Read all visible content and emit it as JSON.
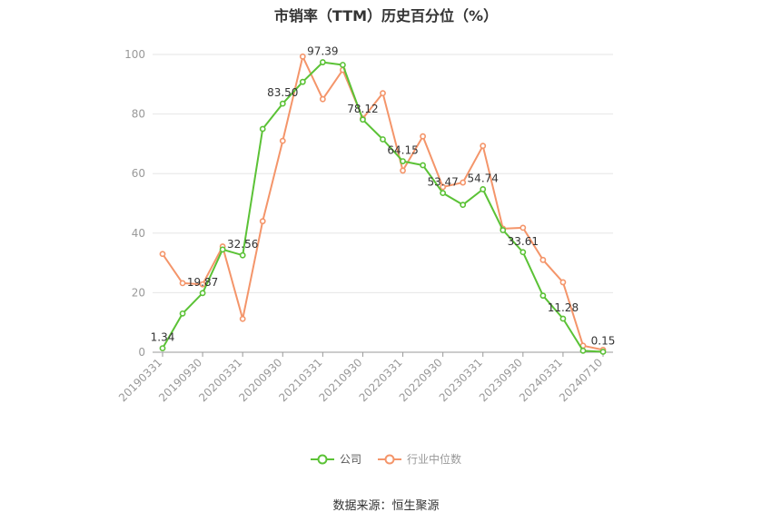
{
  "chart_data": {
    "type": "line",
    "title": "市销率（TTM）历史百分位（%）",
    "xlabel": "",
    "ylabel": "",
    "ylim": [
      0,
      100
    ],
    "yticks": [
      0,
      20,
      40,
      60,
      80,
      100
    ],
    "x": [
      "20190331",
      "20190630",
      "20190930",
      "20191231",
      "20200331",
      "20200630",
      "20200930",
      "20201231",
      "20210331",
      "20210630",
      "20210930",
      "20211231",
      "20220331",
      "20220630",
      "20220930",
      "20221231",
      "20230331",
      "20230630",
      "20230930",
      "20231231",
      "20240331",
      "20240630",
      "20240710"
    ],
    "xtick_labels": [
      "20190331",
      "20190930",
      "20200331",
      "20200930",
      "20210331",
      "20210930",
      "20220331",
      "20220930",
      "20230331",
      "20230930",
      "20240331",
      "20240710"
    ],
    "grid": true,
    "legend_position": "bottom",
    "series": [
      {
        "name": "公司",
        "color": "#5bc236",
        "values": [
          1.34,
          13.0,
          19.87,
          34.5,
          32.56,
          75.0,
          83.5,
          90.8,
          97.39,
          96.5,
          78.12,
          71.5,
          64.15,
          62.8,
          53.47,
          49.5,
          54.74,
          41.0,
          33.61,
          19.0,
          11.28,
          0.5,
          0.15
        ],
        "labels": {
          "0": "1.34",
          "2": "19.87",
          "4": "32.56",
          "6": "83.50",
          "8": "97.39",
          "10": "78.12",
          "12": "64.15",
          "14": "53.47",
          "16": "54.74",
          "18": "33.61",
          "20": "11.28",
          "22": "0.15"
        }
      },
      {
        "name": "行业中位数",
        "color": "#f4956a",
        "values": [
          33.0,
          23.2,
          22.8,
          35.5,
          11.2,
          44.0,
          71.0,
          99.3,
          85.0,
          94.8,
          78.5,
          87.0,
          61.0,
          72.5,
          55.5,
          57.0,
          69.3,
          41.5,
          41.8,
          31.0,
          23.5,
          2.2,
          0.8
        ]
      }
    ]
  },
  "footer": {
    "source": "数据来源：恒生聚源"
  }
}
